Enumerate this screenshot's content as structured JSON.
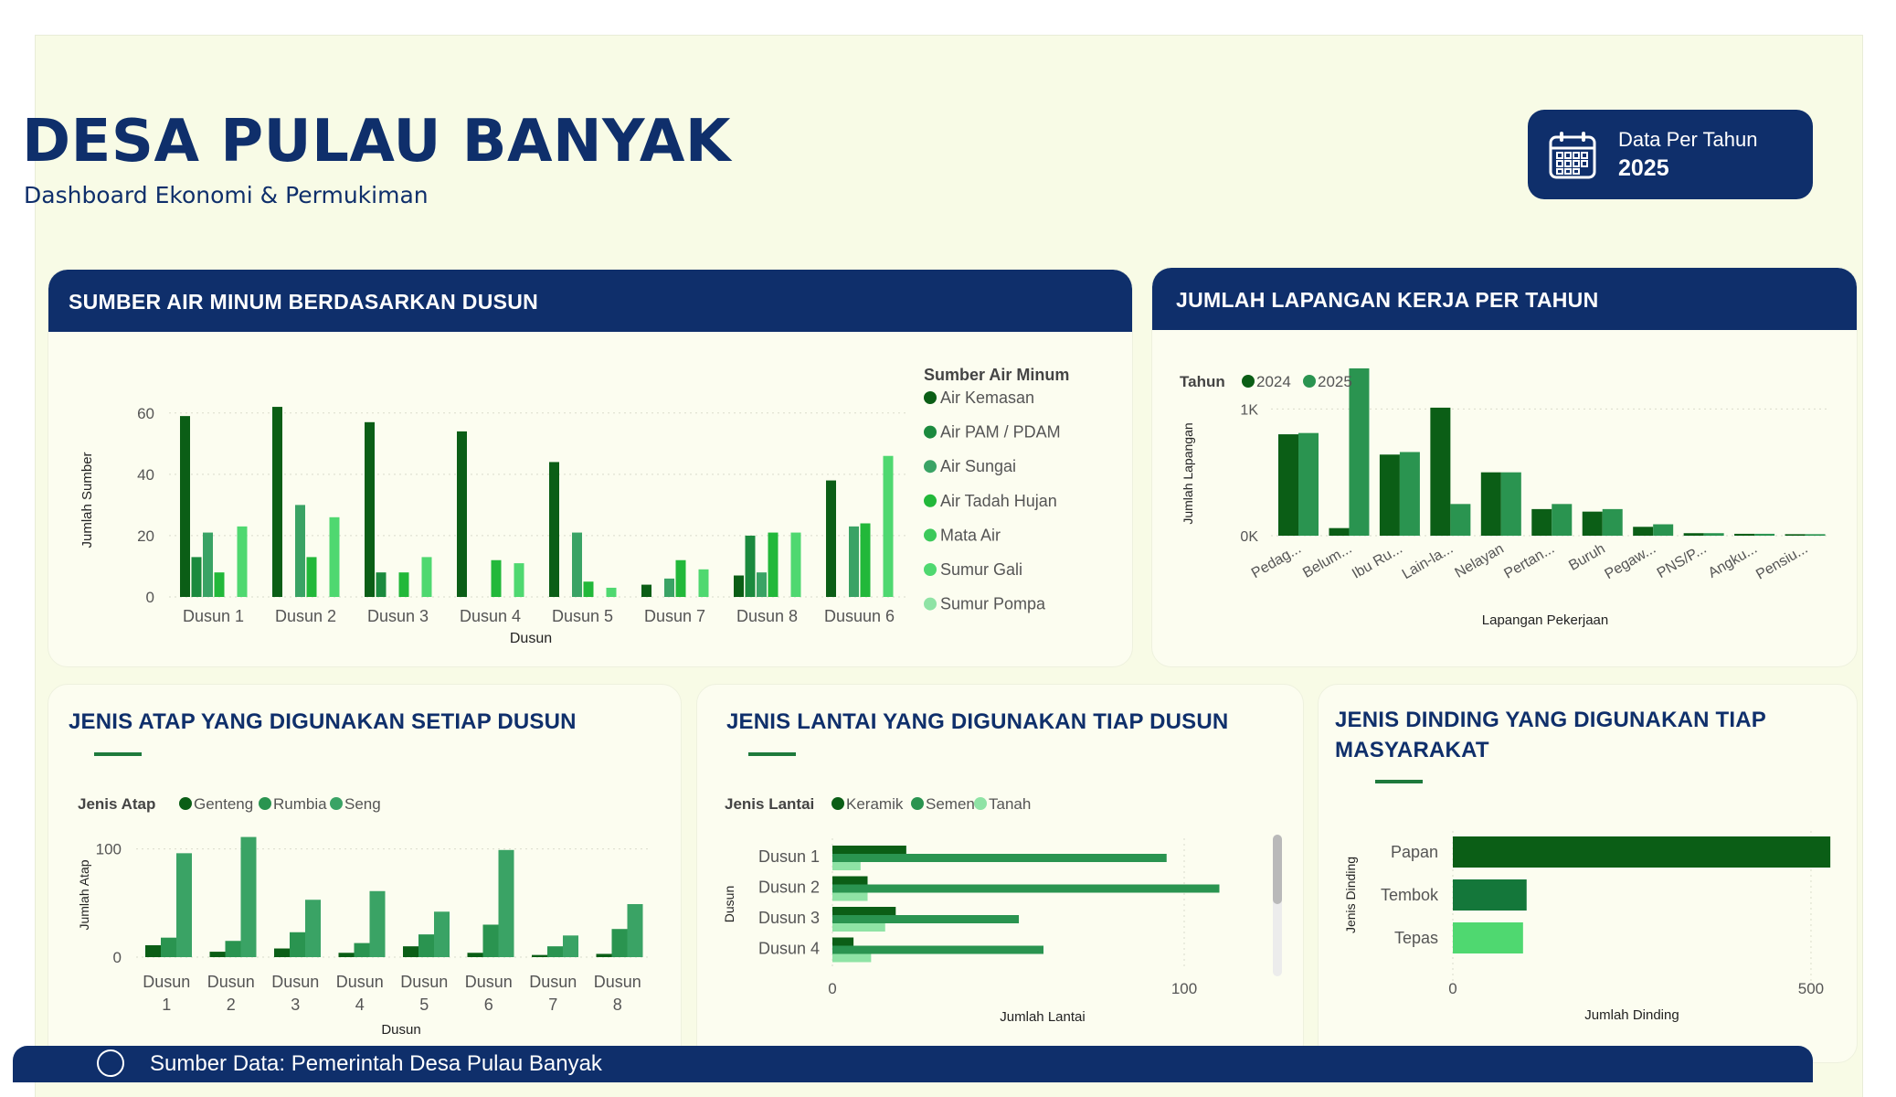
{
  "header": {
    "title": "DESA PULAU BANYAK",
    "subtitle": "Dashboard Ekonomi & Permukiman",
    "badge_line1": "Data Per Tahun",
    "badge_year": "2025",
    "badge_icon": "calendar-icon"
  },
  "footer": {
    "text": "Sumber Data: Pemerintah Desa Pulau Banyak",
    "icon": "village-seal-icon"
  },
  "colors": {
    "navy": "#0f2f6b",
    "g1": "#0b5e16",
    "g2": "#1b8a3e",
    "g3": "#3aa365",
    "g4": "#22b83a",
    "g5": "#3cc95a",
    "g6": "#4fd870",
    "g7": "#8fe3a5"
  },
  "cards": {
    "water": {
      "title": "SUMBER AIR MINUM BERDASARKAN DUSUN"
    },
    "jobs": {
      "title": "JUMLAH LAPANGAN KERJA PER TAHUN"
    },
    "roof": {
      "title": "JENIS ATAP YANG DIGUNAKAN SETIAP DUSUN"
    },
    "floor": {
      "title": "JENIS LANTAI YANG DIGUNAKAN TIAP DUSUN"
    },
    "wall": {
      "title_line1": "JENIS DINDING YANG DIGUNAKAN TIAP",
      "title_line2": "MASYARAKAT"
    }
  },
  "chart_data": [
    {
      "id": "water",
      "type": "bar",
      "xlabel": "Dusun",
      "ylabel": "Jumlah Sumber",
      "legend_title": "Sumber Air Minum",
      "legend_position": "right",
      "ylim": [
        0,
        65
      ],
      "yticks": [
        0,
        20,
        40,
        60
      ],
      "categories": [
        "Dusun 1",
        "Dusun 2",
        "Dusun 3",
        "Dusun 4",
        "Dusun 5",
        "Dusun 7",
        "Dusun 8",
        "Dusuun 6"
      ],
      "series": [
        {
          "name": "Air Kemasan",
          "color": "#0b5e16",
          "values": [
            59,
            62,
            57,
            54,
            44,
            4,
            7,
            38
          ]
        },
        {
          "name": "Air PAM / PDAM",
          "color": "#1b8a3e",
          "values": [
            13,
            0,
            8,
            0,
            0,
            0,
            20,
            0
          ]
        },
        {
          "name": "Air Sungai",
          "color": "#3aa365",
          "values": [
            21,
            30,
            0,
            0,
            21,
            6,
            8,
            23
          ]
        },
        {
          "name": "Air Tadah Hujan",
          "color": "#22b83a",
          "values": [
            8,
            13,
            8,
            12,
            5,
            12,
            21,
            24
          ]
        },
        {
          "name": "Mata Air",
          "color": "#3cc95a",
          "values": [
            0,
            0,
            0,
            0,
            0,
            0,
            0,
            0
          ]
        },
        {
          "name": "Sumur Gali",
          "color": "#4fd870",
          "values": [
            23,
            26,
            13,
            11,
            3,
            9,
            21,
            46
          ]
        },
        {
          "name": "Sumur Pompa",
          "color": "#8fe3a5",
          "values": [
            0,
            0,
            0,
            0,
            0,
            0,
            0,
            0
          ]
        }
      ]
    },
    {
      "id": "jobs",
      "type": "bar",
      "xlabel": "Lapangan Pekerjaan",
      "ylabel": "Jumlah Lapangan",
      "legend_title": "Tahun",
      "legend_position": "top-left",
      "ylim": [
        0,
        1500
      ],
      "yticks": [
        0,
        1000
      ],
      "ytick_labels": [
        "0K",
        "1K"
      ],
      "categories": [
        "Pedag...",
        "Belum...",
        "Ibu Ru...",
        "Lain-la...",
        "Nelayan",
        "Pertan...",
        "Buruh",
        "Pegaw...",
        "PNS/P...",
        "Angku...",
        "Pensiu..."
      ],
      "series": [
        {
          "name": "2024",
          "color": "#0b5e16",
          "values": [
            800,
            60,
            640,
            1010,
            500,
            210,
            190,
            70,
            20,
            15,
            12
          ]
        },
        {
          "name": "2025",
          "color": "#2a9450",
          "values": [
            810,
            1320,
            660,
            250,
            500,
            250,
            210,
            90,
            20,
            15,
            12
          ]
        }
      ]
    },
    {
      "id": "roof",
      "type": "bar",
      "xlabel": "Dusun",
      "ylabel": "Jumlah Atap",
      "legend_title": "Jenis Atap",
      "legend_position": "top-left",
      "ylim": [
        0,
        125
      ],
      "yticks": [
        0,
        100
      ],
      "categories": [
        "Dusun 1",
        "Dusun 2",
        "Dusun 3",
        "Dusun 4",
        "Dusun 5",
        "Dusun 6",
        "Dusun 7",
        "Dusun 8"
      ],
      "series": [
        {
          "name": "Genteng",
          "color": "#0b5e16",
          "values": [
            11,
            5,
            8,
            4,
            10,
            4,
            2,
            3
          ]
        },
        {
          "name": "Rumbia",
          "color": "#2a9450",
          "values": [
            18,
            15,
            23,
            13,
            21,
            30,
            10,
            26
          ]
        },
        {
          "name": "Seng",
          "color": "#3aa365",
          "values": [
            96,
            111,
            53,
            61,
            42,
            99,
            20,
            49
          ]
        }
      ]
    },
    {
      "id": "floor",
      "type": "bar",
      "orientation": "horizontal",
      "xlabel": "Jumlah Lantai",
      "ylabel": "Dusun",
      "legend_title": "Jenis Lantai",
      "legend_position": "top-left",
      "xlim": [
        0,
        120
      ],
      "xticks": [
        0,
        100
      ],
      "categories": [
        "Dusun 1",
        "Dusun 2",
        "Dusun 3",
        "Dusun 4"
      ],
      "series": [
        {
          "name": "Keramik",
          "color": "#0b5e16",
          "values": [
            21,
            10,
            18,
            6
          ]
        },
        {
          "name": "Semen",
          "color": "#2a9450",
          "values": [
            95,
            110,
            53,
            60
          ]
        },
        {
          "name": "Tanah",
          "color": "#8fe3a5",
          "values": [
            8,
            10,
            15,
            11
          ]
        }
      ]
    },
    {
      "id": "wall",
      "type": "bar",
      "orientation": "horizontal",
      "xlabel": "Jumlah Dinding",
      "ylabel": "Jenis Dinding",
      "xlim": [
        0,
        560
      ],
      "xticks": [
        0,
        500
      ],
      "categories": [
        "Papan",
        "Tembok",
        "Tepas"
      ],
      "values": [
        527,
        103,
        98
      ],
      "colors": [
        "#0b5e16",
        "#14773a",
        "#4fd870"
      ]
    }
  ]
}
